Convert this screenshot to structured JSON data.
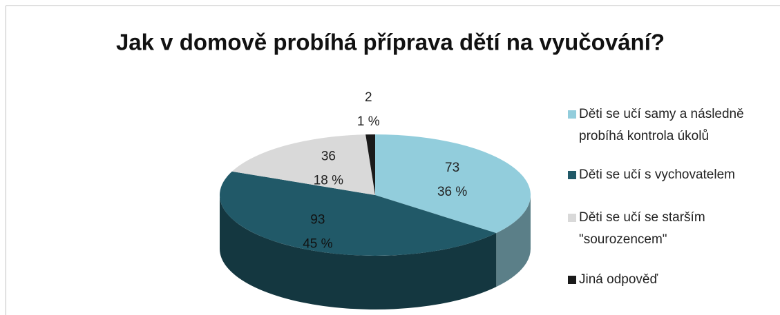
{
  "chart_data": {
    "type": "pie",
    "title": "Jak v domově probíhá příprava dětí na vyučování?",
    "categories": [
      "Děti se učí samy a následně probíhá kontrola úkolů",
      "Děti se učí s vychovatelem",
      "Děti se učí se starším \"sourozencem\"",
      "Jiná odpověď"
    ],
    "values": [
      73,
      93,
      36,
      2
    ],
    "percent_labels": [
      "36 %",
      "45 %",
      "18 %",
      "1 %"
    ],
    "colors": [
      "#92cddc",
      "#215968",
      "#d9d9d9",
      "#1a1a1a"
    ],
    "legend": "right"
  }
}
